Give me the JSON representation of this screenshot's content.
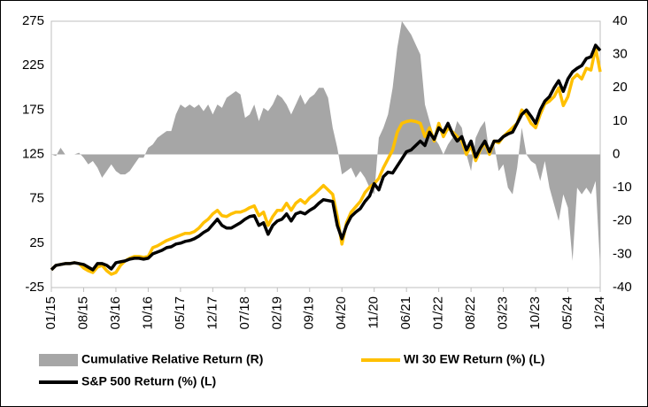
{
  "chart_data": {
    "type": "combo",
    "categories": [
      "01/15",
      null,
      null,
      null,
      null,
      null,
      null,
      "08/15",
      null,
      null,
      null,
      null,
      null,
      null,
      "03/16",
      null,
      null,
      null,
      null,
      null,
      null,
      "10/16",
      null,
      null,
      null,
      null,
      null,
      null,
      "05/17",
      null,
      null,
      null,
      null,
      null,
      null,
      "12/17",
      null,
      null,
      null,
      null,
      null,
      null,
      "07/18",
      null,
      null,
      null,
      null,
      null,
      null,
      "02/19",
      null,
      null,
      null,
      null,
      null,
      null,
      "09/19",
      null,
      null,
      null,
      null,
      null,
      null,
      "04/20",
      null,
      null,
      null,
      null,
      null,
      null,
      "11/20",
      null,
      null,
      null,
      null,
      null,
      null,
      "06/21",
      null,
      null,
      null,
      null,
      null,
      null,
      "01/22",
      null,
      null,
      null,
      null,
      null,
      null,
      "08/22",
      null,
      null,
      null,
      null,
      null,
      null,
      "03/23",
      null,
      null,
      null,
      null,
      null,
      null,
      "10/23",
      null,
      null,
      null,
      null,
      null,
      null,
      "05/24",
      null,
      null,
      null,
      null,
      null,
      null,
      "12/24"
    ],
    "series": [
      {
        "name": "Cumulative Relative Return (R)",
        "type": "area",
        "axis": "y2",
        "color": "#a6a6a6",
        "values": [
          0,
          -0.5,
          2,
          0,
          0,
          0,
          0.5,
          -1,
          -3,
          -2,
          -4,
          -7,
          -5,
          -3,
          -5,
          -6,
          -6,
          -5,
          -3,
          -1,
          -1,
          2,
          3,
          5,
          6,
          7,
          7,
          12,
          15,
          14,
          15,
          14,
          15,
          13,
          15,
          12,
          15,
          14,
          17,
          18,
          19,
          18,
          11,
          12,
          15,
          10,
          14,
          13,
          15,
          18,
          17,
          15,
          12,
          15,
          18,
          15,
          17,
          18,
          20,
          20,
          17,
          8,
          2,
          -6,
          -5,
          -4,
          -7,
          -5,
          -7,
          -10,
          -12,
          5,
          8,
          12,
          20,
          32,
          40,
          38,
          36,
          33,
          30,
          15,
          10,
          5,
          3,
          0,
          3,
          5,
          10,
          8,
          0,
          -5,
          5,
          8,
          10,
          0,
          3,
          -5,
          -3,
          -10,
          -12,
          -4,
          8,
          0,
          -2,
          -3,
          -8,
          -2,
          -10,
          -15,
          -20,
          -12,
          -16,
          -32,
          -10,
          -12,
          -10,
          -12,
          -8,
          -34
        ]
      },
      {
        "name": "WI 30 EW Return (%) (L)",
        "type": "line",
        "color": "#ffc000",
        "values": [
          -5,
          0,
          1,
          2,
          2,
          3,
          2,
          -3,
          -6,
          -8,
          -2,
          0,
          -6,
          -10,
          -8,
          0,
          5,
          8,
          10,
          10,
          9,
          10,
          20,
          22,
          25,
          28,
          30,
          32,
          34,
          36,
          36,
          38,
          42,
          48,
          52,
          58,
          62,
          56,
          55,
          58,
          60,
          60,
          62,
          65,
          67,
          56,
          60,
          45,
          55,
          62,
          62,
          70,
          62,
          70,
          74,
          70,
          76,
          80,
          85,
          90,
          85,
          80,
          55,
          24,
          48,
          60,
          66,
          72,
          82,
          88,
          92,
          98,
          110,
          120,
          130,
          150,
          160,
          162,
          163,
          162,
          160,
          145,
          155,
          140,
          160,
          145,
          155,
          150,
          145,
          140,
          125,
          135,
          118,
          130,
          138,
          125,
          140,
          138,
          145,
          150,
          155,
          160,
          175,
          170,
          160,
          155,
          170,
          182,
          185,
          190,
          200,
          180,
          190,
          210,
          215,
          210,
          222,
          220,
          245,
          218
        ]
      },
      {
        "name": "S&P 500 Return (%) (L)",
        "type": "line",
        "color": "#000000",
        "values": [
          -5,
          0,
          1,
          2,
          2,
          3,
          2,
          1,
          -2,
          -5,
          2,
          2,
          0,
          -4,
          3,
          4,
          5,
          7,
          8,
          8,
          7,
          8,
          13,
          15,
          17,
          20,
          21,
          24,
          25,
          27,
          28,
          30,
          33,
          37,
          40,
          46,
          52,
          45,
          42,
          42,
          45,
          48,
          52,
          55,
          56,
          45,
          48,
          35,
          45,
          50,
          52,
          58,
          50,
          58,
          60,
          58,
          62,
          65,
          70,
          74,
          73,
          72,
          45,
          30,
          45,
          55,
          60,
          64,
          72,
          78,
          92,
          85,
          100,
          105,
          104,
          112,
          120,
          128,
          130,
          135,
          140,
          135,
          150,
          142,
          155,
          150,
          160,
          148,
          140,
          145,
          130,
          140,
          122,
          132,
          140,
          128,
          140,
          140,
          145,
          148,
          150,
          160,
          170,
          175,
          168,
          160,
          175,
          185,
          190,
          200,
          208,
          196,
          210,
          218,
          222,
          225,
          233,
          235,
          248,
          242
        ]
      }
    ],
    "ylim": [
      -25,
      275
    ],
    "yticks": [
      -25,
      25,
      75,
      125,
      175,
      225,
      275
    ],
    "y2lim": [
      -40,
      40
    ],
    "y2ticks": [
      -40,
      -30,
      -20,
      -10,
      0,
      10,
      20,
      30,
      40
    ],
    "grid": false,
    "legend": "bottom"
  }
}
